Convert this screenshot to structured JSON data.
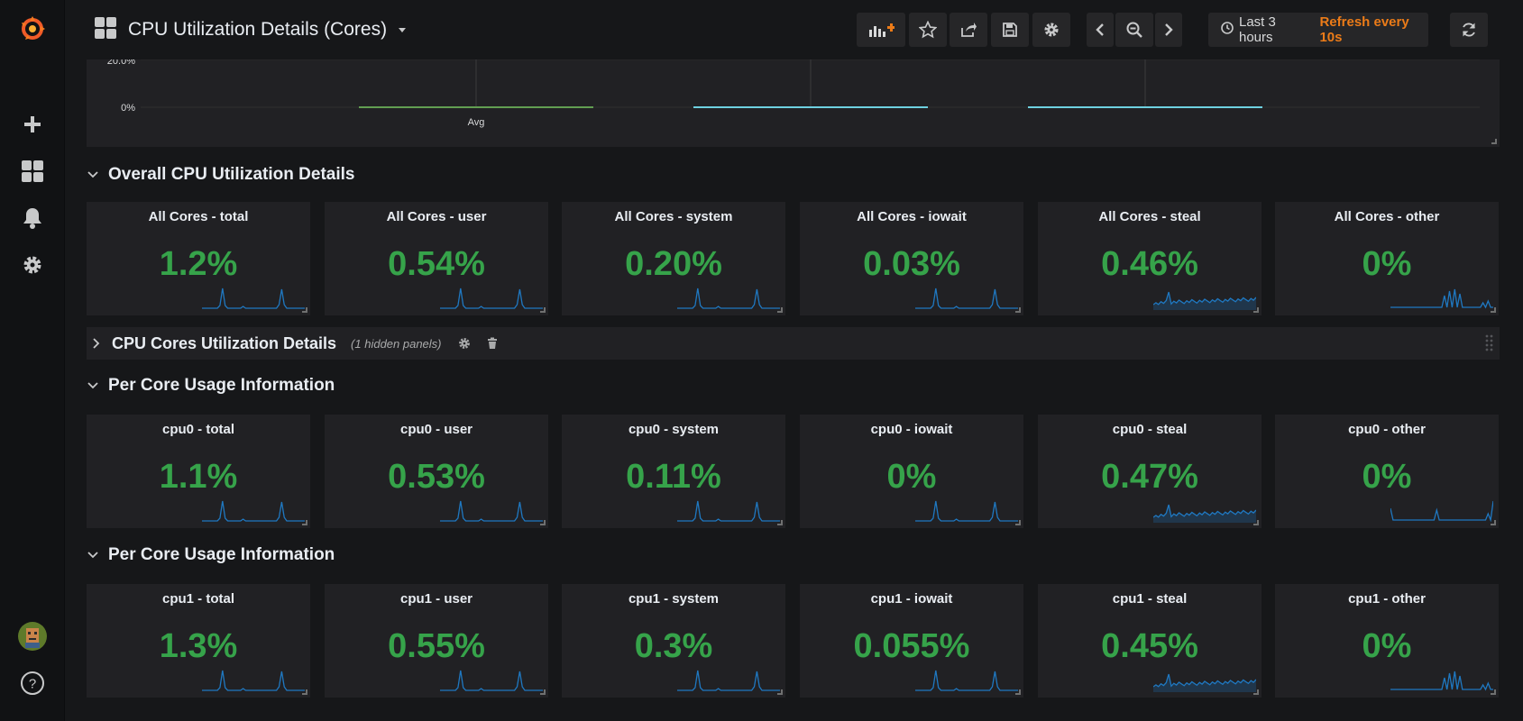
{
  "header": {
    "title": "CPU Utilization Details (Cores)",
    "time_range": "Last 3 hours",
    "refresh": "Refresh every 10s"
  },
  "graph": {
    "y_ticks": [
      "20.0%",
      "0%"
    ],
    "x_label": "Avg",
    "series_colors": [
      "#629e51",
      "#6ed0e0",
      "#6ed0e0"
    ]
  },
  "rows": {
    "overall": {
      "title": "Overall CPU Utilization Details"
    },
    "cores": {
      "title": "CPU Cores Utilization Details",
      "note": "(1 hidden panels)"
    },
    "per_core_0": {
      "title": "Per Core Usage Information"
    },
    "per_core_1": {
      "title": "Per Core Usage Information"
    }
  },
  "panels": {
    "overall": [
      {
        "title": "All Cores - total",
        "value": "1.2%",
        "spark": "spike"
      },
      {
        "title": "All Cores - user",
        "value": "0.54%",
        "spark": "spike"
      },
      {
        "title": "All Cores - system",
        "value": "0.20%",
        "spark": "spike"
      },
      {
        "title": "All Cores - iowait",
        "value": "0.03%",
        "spark": "spike"
      },
      {
        "title": "All Cores - steal",
        "value": "0.46%",
        "spark": "steal"
      },
      {
        "title": "All Cores - other",
        "value": "0%",
        "spark": "other"
      }
    ],
    "cpu0": [
      {
        "title": "cpu0 - total",
        "value": "1.1%",
        "spark": "spike"
      },
      {
        "title": "cpu0 - user",
        "value": "0.53%",
        "spark": "spike"
      },
      {
        "title": "cpu0 - system",
        "value": "0.11%",
        "spark": "spike"
      },
      {
        "title": "cpu0 - iowait",
        "value": "0%",
        "spark": "spike"
      },
      {
        "title": "cpu0 - steal",
        "value": "0.47%",
        "spark": "steal"
      },
      {
        "title": "cpu0 - other",
        "value": "0%",
        "spark": "edge"
      }
    ],
    "cpu1": [
      {
        "title": "cpu1 - total",
        "value": "1.3%",
        "spark": "spike"
      },
      {
        "title": "cpu1 - user",
        "value": "0.55%",
        "spark": "spike"
      },
      {
        "title": "cpu1 - system",
        "value": "0.3%",
        "spark": "spike"
      },
      {
        "title": "cpu1 - iowait",
        "value": "0.055%",
        "spark": "spike"
      },
      {
        "title": "cpu1 - steal",
        "value": "0.45%",
        "spark": "steal"
      },
      {
        "title": "cpu1 - other",
        "value": "0%",
        "spark": "other"
      }
    ]
  },
  "colors": {
    "stat_value": "#36a34a",
    "sparkline": "#1f78c1",
    "accent": "#eb7b18"
  }
}
